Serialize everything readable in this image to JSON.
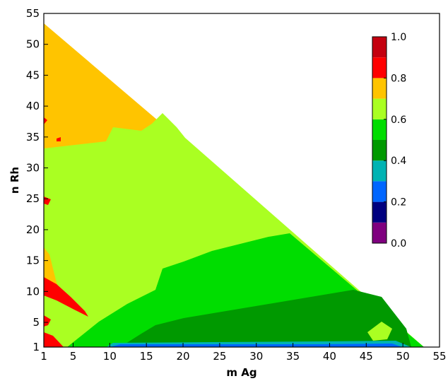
{
  "chart_data": {
    "type": "heatmap",
    "subtype": "filled-contour (ternary-like triangular domain)",
    "xlabel": "m Ag",
    "ylabel": "n Rh",
    "xlim": [
      1,
      55
    ],
    "ylim": [
      1,
      55
    ],
    "x_ticks": [
      1,
      5,
      10,
      15,
      20,
      25,
      30,
      35,
      40,
      45,
      50,
      55
    ],
    "y_ticks": [
      1,
      5,
      10,
      15,
      20,
      25,
      30,
      35,
      40,
      45,
      50,
      55
    ],
    "domain": "triangle m + n <= 55 (data region bounded by the diagonal from (1,54) to (54,1))",
    "colorbar": {
      "placement": "top-right inside axes",
      "levels": [
        0.0,
        0.1,
        0.2,
        0.3,
        0.4,
        0.5,
        0.6,
        0.7,
        0.8,
        0.9,
        1.0
      ],
      "tick_labels": [
        "0.0",
        "0.2",
        "0.4",
        "0.6",
        "0.8",
        "1.0"
      ],
      "colors": [
        "#7f007f",
        "#00007f",
        "#0066ff",
        "#00b3b3",
        "#009900",
        "#00dd00",
        "#aaff22",
        "#ffc400",
        "#ff0000",
        "#c4000f"
      ]
    },
    "regions": [
      {
        "level_range": [
          0.7,
          0.8
        ],
        "color": "#ffc400",
        "description": "upper-left band: n roughly 35-54 for small m, extends down along the left edge to n~10"
      },
      {
        "level_range": [
          0.6,
          0.7
        ],
        "color": "#aaff22",
        "description": "central area m~10-35, n~10-35 and along the diagonal"
      },
      {
        "level_range": [
          0.5,
          0.6
        ],
        "color": "#00dd00",
        "description": "lower-right area m~20-52, n~2-18"
      },
      {
        "level_range": [
          0.4,
          0.5
        ],
        "color": "#009900",
        "description": "band near bottom m~15-50, n~2-8"
      },
      {
        "level_range": [
          0.2,
          0.4
        ],
        "color": "#0066ff",
        "description": "thin strip along n=1 for m~10-52"
      },
      {
        "level_range": [
          0.8,
          1.0
        ],
        "color": "#ff0000",
        "description": "small patches near m=1: n~1-4, n~8-12, n~25, n~38"
      }
    ]
  }
}
